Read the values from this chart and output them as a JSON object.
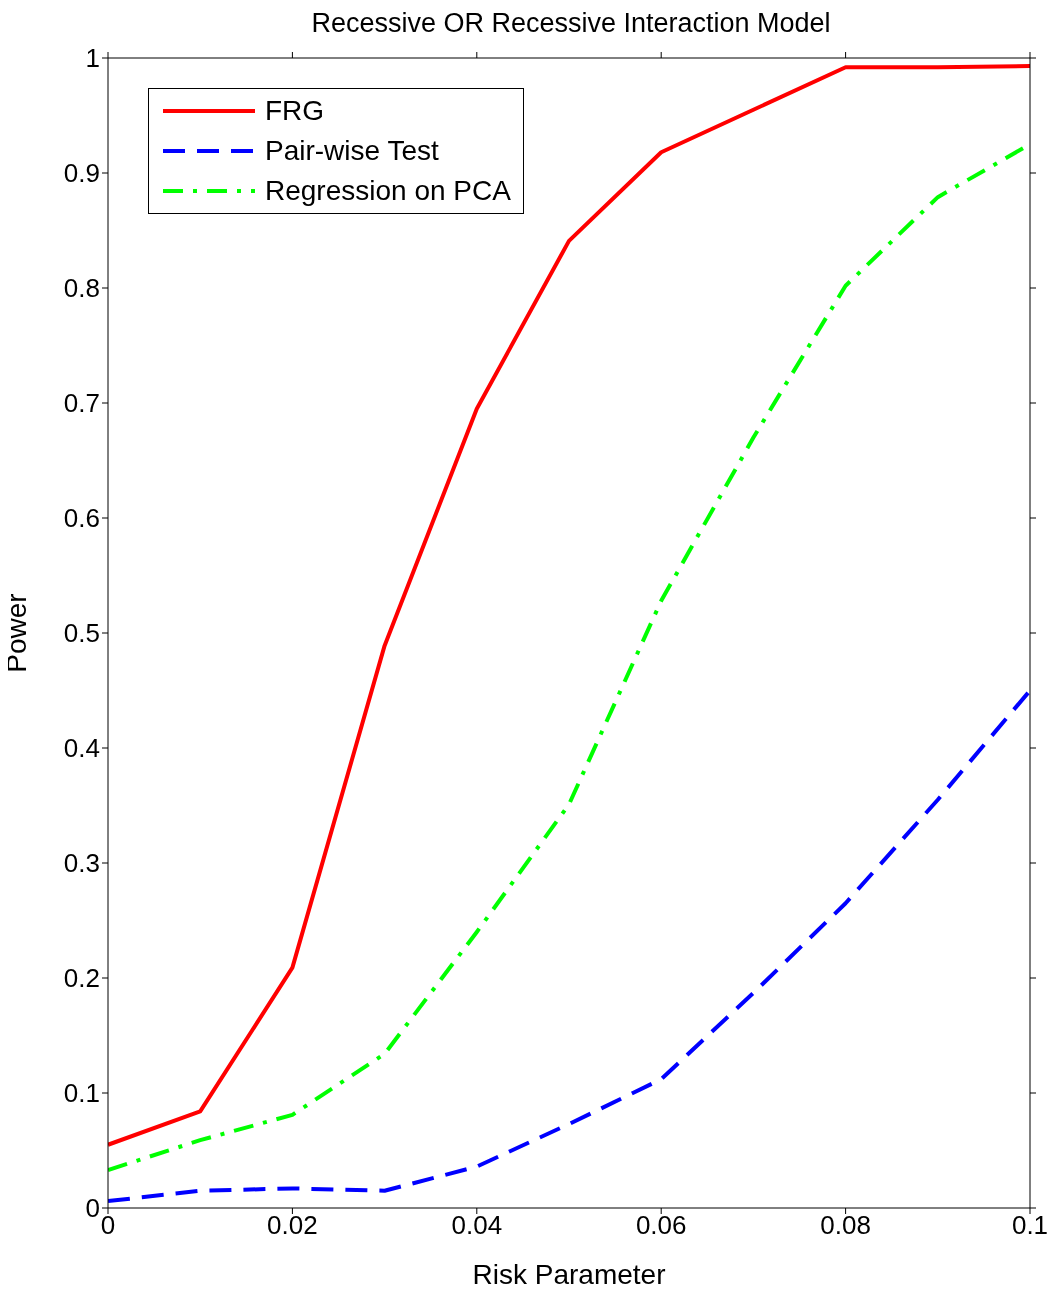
{
  "chart_data": {
    "type": "line",
    "title": "Recessive OR Recessive Interaction Model",
    "xlabel": "Risk Parameter",
    "ylabel": "Power",
    "x": [
      0,
      0.01,
      0.02,
      0.03,
      0.04,
      0.05,
      0.06,
      0.07,
      0.08,
      0.09,
      0.1
    ],
    "series": [
      {
        "name": "FRG",
        "color": "#ff0000",
        "line_style": "solid",
        "values": [
          0.055,
          0.084,
          0.209,
          0.489,
          0.695,
          0.841,
          0.918,
          0.955,
          0.992,
          0.992,
          0.993
        ]
      },
      {
        "name": "Pair-wise Test",
        "color": "#0000ff",
        "line_style": "dashed",
        "values": [
          0.006,
          0.015,
          0.017,
          0.015,
          0.036,
          0.073,
          0.112,
          0.187,
          0.265,
          0.355,
          0.45
        ]
      },
      {
        "name": "Regression on PCA",
        "color": "#00ff00",
        "line_style": "dashdot",
        "values": [
          0.033,
          0.059,
          0.081,
          0.134,
          0.24,
          0.351,
          0.528,
          0.67,
          0.802,
          0.879,
          0.925
        ]
      }
    ],
    "xlim": [
      0,
      0.1
    ],
    "xticks": [
      0,
      0.02,
      0.04,
      0.06,
      0.08,
      0.1
    ],
    "ylim": [
      0,
      1
    ],
    "yticks": [
      0,
      0.1,
      0.2,
      0.3,
      0.4,
      0.5,
      0.6,
      0.7,
      0.8,
      0.9,
      1
    ],
    "grid": false,
    "legend": "top left",
    "marker": "none"
  }
}
